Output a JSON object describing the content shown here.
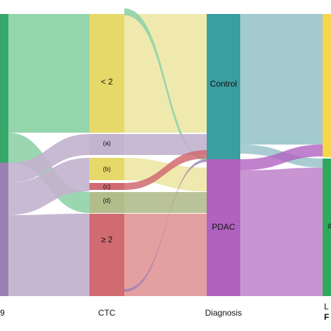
{
  "axis_labels": {
    "col1": "9",
    "col2": "CTC",
    "col3": "Diagnosis",
    "col4": "L",
    "col4_bold": "F"
  },
  "nodes": {
    "ctc_lt2": "< 2",
    "ctc_a": "(a)",
    "ctc_b": "(b)",
    "ctc_c": "(c)",
    "ctc_d": "(d)",
    "ctc_ge2": "≥ 2",
    "control": "Control",
    "pdac": "PDAC",
    "right_yellow": "",
    "right_green": "a"
  },
  "colors": {
    "green": "#36a86a",
    "lightgreen": "#8fd3a8",
    "purple": "#9b7fb2",
    "lavender": "#c3b3cf",
    "yellow": "#e6d96a",
    "lightyellow": "#eee8a9",
    "red": "#d06b72",
    "lightred": "#e39a9b",
    "olive": "#b3bd8c",
    "teal": "#3b9ea0",
    "lightteal": "#9ec7cc",
    "magenta": "#b062c0",
    "lightmagenta": "#c58ed0",
    "gold": "#f6d64a",
    "darkgreen": "#32a85d"
  }
}
